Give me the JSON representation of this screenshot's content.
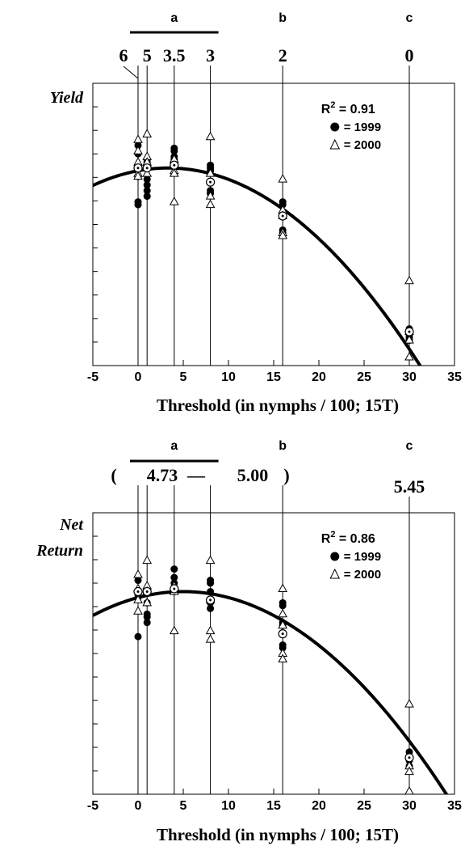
{
  "chart_data": [
    {
      "type": "scatter",
      "ylabel": "Yield",
      "xlabel": "Threshold (in nymphs / 100; 15T)",
      "xlim": [
        -5,
        35
      ],
      "ylim": [
        0,
        1
      ],
      "x_ticks": [
        -5,
        0,
        5,
        10,
        15,
        20,
        25,
        30,
        35
      ],
      "y_ticks_unlabeled": 12,
      "r2": "0.91",
      "legend": [
        {
          "marker": "filled-circle",
          "label": "= 1999"
        },
        {
          "marker": "open-triangle",
          "label": "= 2000"
        }
      ],
      "legend_position": "top-right",
      "group_letters": [
        {
          "letter": "a",
          "x_from": 0,
          "x_to": 8,
          "bar": true
        },
        {
          "letter": "b",
          "x": 16
        },
        {
          "letter": "c",
          "x": 30
        }
      ],
      "top_values": [
        {
          "text": "6",
          "x": 0
        },
        {
          "text": "5",
          "x": 1
        },
        {
          "text": "3.5",
          "x": 4
        },
        {
          "text": "3",
          "x": 8
        },
        {
          "text": "2",
          "x": 16
        },
        {
          "text": "0",
          "x": 30
        }
      ],
      "top_extra": [],
      "treatments": [
        0,
        1,
        4,
        8,
        16,
        30
      ],
      "series": [
        {
          "name": "1999",
          "marker": "filled-circle",
          "points": [
            [
              0,
              0.78
            ],
            [
              0,
              0.75
            ],
            [
              0,
              0.67
            ],
            [
              0,
              0.58
            ],
            [
              0,
              0.57
            ],
            [
              1,
              0.73
            ],
            [
              1,
              0.72
            ],
            [
              1,
              0.66
            ],
            [
              1,
              0.64
            ],
            [
              1,
              0.62
            ],
            [
              1,
              0.6
            ],
            [
              4,
              0.77
            ],
            [
              4,
              0.76
            ],
            [
              4,
              0.74
            ],
            [
              4,
              0.73
            ],
            [
              4,
              0.71
            ],
            [
              8,
              0.71
            ],
            [
              8,
              0.7
            ],
            [
              8,
              0.69
            ],
            [
              8,
              0.62
            ],
            [
              8,
              0.61
            ],
            [
              16,
              0.58
            ],
            [
              16,
              0.57
            ],
            [
              16,
              0.54
            ],
            [
              16,
              0.48
            ],
            [
              16,
              0.47
            ],
            [
              30,
              0.13
            ],
            [
              30,
              0.11
            ],
            [
              30,
              0.1
            ],
            [
              30,
              0.09
            ]
          ]
        },
        {
          "name": "2000",
          "marker": "open-triangle",
          "points": [
            [
              0,
              0.8
            ],
            [
              0,
              0.76
            ],
            [
              0,
              0.72
            ],
            [
              0,
              0.68
            ],
            [
              0,
              0.67
            ],
            [
              1,
              0.82
            ],
            [
              1,
              0.74
            ],
            [
              1,
              0.72
            ],
            [
              1,
              0.68
            ],
            [
              4,
              0.73
            ],
            [
              4,
              0.69
            ],
            [
              4,
              0.68
            ],
            [
              4,
              0.58
            ],
            [
              8,
              0.81
            ],
            [
              8,
              0.68
            ],
            [
              8,
              0.6
            ],
            [
              8,
              0.57
            ],
            [
              16,
              0.66
            ],
            [
              16,
              0.55
            ],
            [
              16,
              0.53
            ],
            [
              16,
              0.47
            ],
            [
              16,
              0.46
            ],
            [
              30,
              0.3
            ],
            [
              30,
              0.12
            ],
            [
              30,
              0.09
            ],
            [
              30,
              0.03
            ]
          ]
        },
        {
          "name": "mean",
          "marker": "circle-dot",
          "points": [
            [
              0,
              0.7
            ],
            [
              1,
              0.7
            ],
            [
              4,
              0.71
            ],
            [
              8,
              0.65
            ],
            [
              16,
              0.53
            ],
            [
              30,
              0.12
            ]
          ]
        }
      ],
      "fit_curve": {
        "type": "quadratic",
        "a": -0.0009,
        "h": 3.3,
        "k": 0.7
      }
    },
    {
      "type": "scatter",
      "ylabel": "Net Return",
      "xlabel": "Threshold (in nymphs / 100; 15T)",
      "xlim": [
        -5,
        35
      ],
      "ylim": [
        0,
        1
      ],
      "x_ticks": [
        -5,
        0,
        5,
        10,
        15,
        20,
        25,
        30,
        35
      ],
      "y_ticks_unlabeled": 12,
      "r2": "0.86",
      "legend": [
        {
          "marker": "filled-circle",
          "label": "= 1999"
        },
        {
          "marker": "open-triangle",
          "label": "= 2000"
        }
      ],
      "legend_position": "top-right",
      "group_letters": [
        {
          "letter": "a",
          "x_from": 0,
          "x_to": 8,
          "bar": true
        },
        {
          "letter": "b",
          "x": 16
        },
        {
          "letter": "c",
          "x": 30
        }
      ],
      "top_values": [
        {
          "text": "5.45",
          "x": 30
        }
      ],
      "top_extra": [
        "(",
        "4.73",
        "—",
        "5.00",
        ")"
      ],
      "treatments": [
        0,
        1,
        4,
        8,
        16,
        30
      ],
      "series": [
        {
          "name": "1999",
          "marker": "filled-circle",
          "points": [
            [
              0,
              0.76
            ],
            [
              0,
              0.72
            ],
            [
              0,
              0.71
            ],
            [
              0,
              0.7
            ],
            [
              0,
              0.56
            ],
            [
              1,
              0.73
            ],
            [
              1,
              0.68
            ],
            [
              1,
              0.64
            ],
            [
              1,
              0.63
            ],
            [
              1,
              0.61
            ],
            [
              4,
              0.8
            ],
            [
              4,
              0.77
            ],
            [
              4,
              0.75
            ],
            [
              4,
              0.73
            ],
            [
              4,
              0.72
            ],
            [
              8,
              0.76
            ],
            [
              8,
              0.75
            ],
            [
              8,
              0.72
            ],
            [
              8,
              0.68
            ],
            [
              8,
              0.66
            ],
            [
              16,
              0.68
            ],
            [
              16,
              0.67
            ],
            [
              16,
              0.61
            ],
            [
              16,
              0.6
            ],
            [
              16,
              0.53
            ],
            [
              16,
              0.52
            ],
            [
              30,
              0.15
            ],
            [
              30,
              0.13
            ],
            [
              30,
              0.12
            ],
            [
              30,
              0.1
            ]
          ]
        },
        {
          "name": "2000",
          "marker": "open-triangle",
          "points": [
            [
              0,
              0.78
            ],
            [
              0,
              0.73
            ],
            [
              0,
              0.69
            ],
            [
              0,
              0.65
            ],
            [
              1,
              0.83
            ],
            [
              1,
              0.74
            ],
            [
              1,
              0.72
            ],
            [
              1,
              0.68
            ],
            [
              4,
              0.74
            ],
            [
              4,
              0.73
            ],
            [
              4,
              0.72
            ],
            [
              4,
              0.58
            ],
            [
              8,
              0.83
            ],
            [
              8,
              0.69
            ],
            [
              8,
              0.58
            ],
            [
              8,
              0.55
            ],
            [
              16,
              0.73
            ],
            [
              16,
              0.64
            ],
            [
              16,
              0.6
            ],
            [
              16,
              0.5
            ],
            [
              16,
              0.48
            ],
            [
              30,
              0.32
            ],
            [
              30,
              0.1
            ],
            [
              30,
              0.08
            ],
            [
              30,
              0.01
            ]
          ]
        },
        {
          "name": "mean",
          "marker": "circle-dot",
          "points": [
            [
              0,
              0.72
            ],
            [
              1,
              0.72
            ],
            [
              4,
              0.73
            ],
            [
              8,
              0.69
            ],
            [
              16,
              0.57
            ],
            [
              30,
              0.13
            ]
          ]
        }
      ],
      "fit_curve": {
        "type": "quadratic",
        "a": -0.00085,
        "h": 5.0,
        "k": 0.72
      }
    }
  ]
}
